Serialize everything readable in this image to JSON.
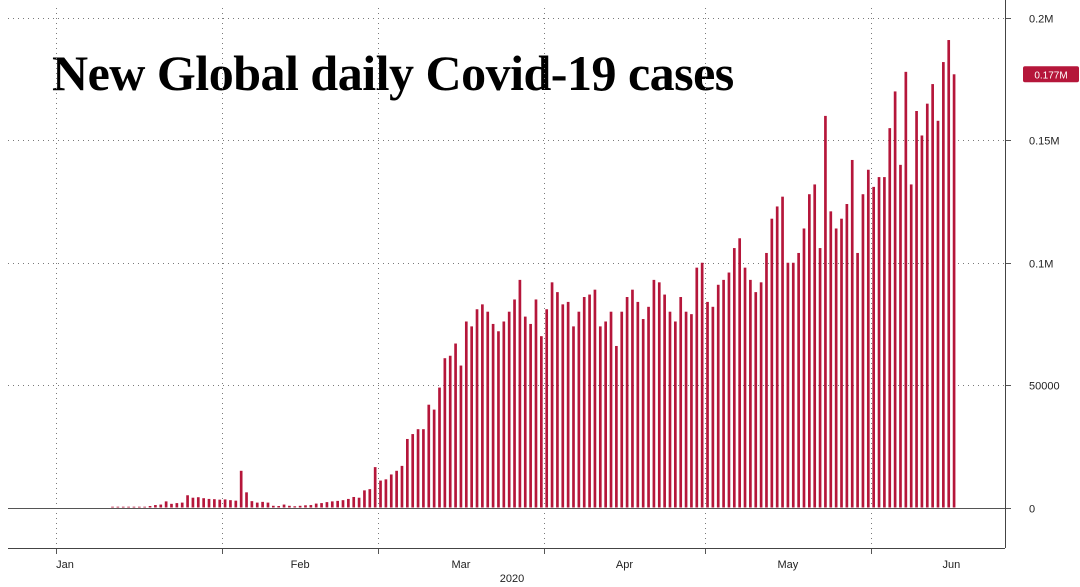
{
  "chart_data": {
    "type": "bar",
    "title": "New Global daily Covid-19 cases",
    "xlabel": "2020",
    "ylabel": "",
    "ylim": [
      -16000,
      200000
    ],
    "y_ticks": [
      {
        "value": 200000,
        "label": "0.2M"
      },
      {
        "value": 150000,
        "label": "0.15M"
      },
      {
        "value": 100000,
        "label": "0.1M"
      },
      {
        "value": 50000,
        "label": "50000"
      },
      {
        "value": 0,
        "label": "0"
      }
    ],
    "x_ticks": [
      {
        "date": "2020-01-01",
        "label": "Jan"
      },
      {
        "date": "2020-02-01",
        "label": "Feb"
      },
      {
        "date": "2020-03-01",
        "label": "Mar"
      },
      {
        "date": "2020-04-01",
        "label": "Apr"
      },
      {
        "date": "2020-05-01",
        "label": "May"
      },
      {
        "date": "2020-06-01",
        "label": "Jun"
      }
    ],
    "x_range": [
      "2019-12-23",
      "2020-06-26"
    ],
    "start_date": "2020-01-11",
    "last_value": {
      "value": 177000,
      "label": "0.177M"
    },
    "grid": true,
    "bar_color": "#b5163a",
    "values": [
      0,
      0,
      0,
      0,
      0,
      300,
      0,
      600,
      1000,
      1200,
      2500,
      1500,
      1800,
      2000,
      5000,
      4000,
      4200,
      3800,
      3500,
      3400,
      3200,
      3300,
      3000,
      2800,
      15000,
      6200,
      2600,
      2000,
      2300,
      2000,
      700,
      600,
      1200,
      700,
      500,
      700,
      900,
      1000,
      1600,
      1800,
      2200,
      2500,
      2700,
      3000,
      3500,
      4300,
      4000,
      7000,
      7500,
      16500,
      11000,
      11500,
      13500,
      15000,
      17000,
      28000,
      30000,
      32000,
      32000,
      42000,
      40000,
      49000,
      61000,
      62000,
      67000,
      58000,
      76000,
      74000,
      81000,
      83000,
      80000,
      75000,
      72000,
      76000,
      80000,
      85000,
      93000,
      78000,
      75000,
      85000,
      70000,
      81000,
      92000,
      88000,
      83000,
      84000,
      74000,
      80000,
      86000,
      87000,
      89000,
      74000,
      76000,
      80000,
      66000,
      80000,
      86000,
      89000,
      84000,
      77000,
      82000,
      93000,
      92000,
      87000,
      80000,
      76000,
      86000,
      80000,
      79000,
      98000,
      100000,
      84000,
      82000,
      91000,
      93000,
      96000,
      106000,
      110000,
      98000,
      93000,
      88000,
      92000,
      104000,
      118000,
      123000,
      127000,
      100000,
      100000,
      104000,
      114000,
      128000,
      132000,
      106000,
      160000,
      121000,
      114000,
      118000,
      124000,
      142000,
      104000,
      128000,
      138000,
      131000,
      135000,
      135000,
      155000,
      170000,
      140000,
      178000,
      132000,
      162000,
      152000,
      165000,
      173000,
      158000,
      182000,
      191000,
      177000
    ]
  }
}
